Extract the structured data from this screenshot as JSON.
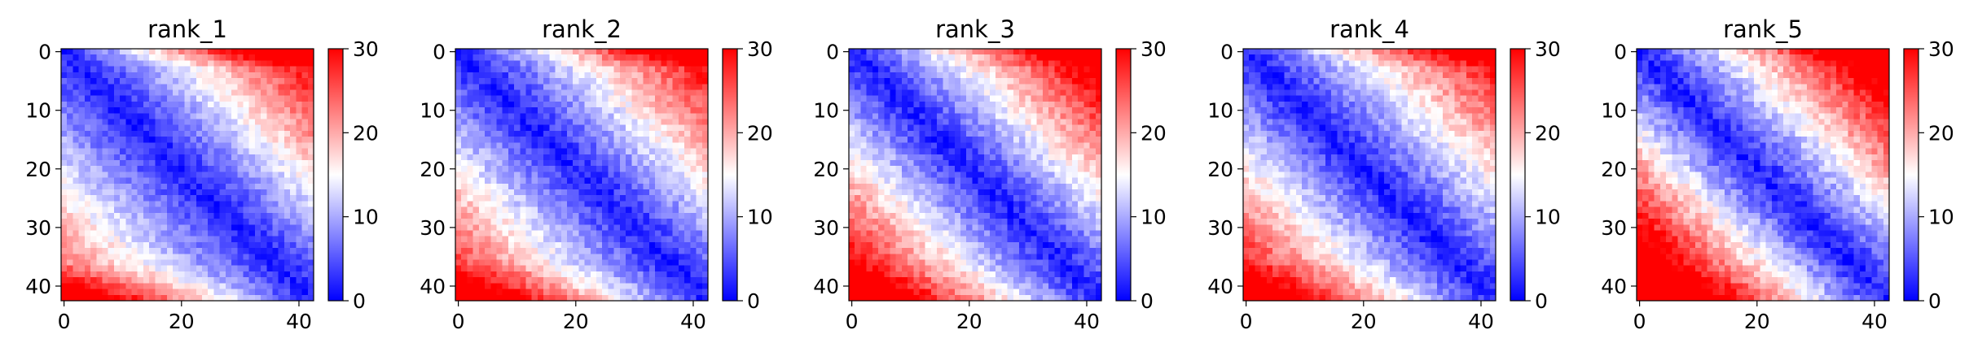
{
  "chart_data": [
    {
      "type": "heatmap",
      "title": "rank_1",
      "size": 43,
      "x_ticks": [
        "0",
        "20",
        "40"
      ],
      "y_ticks": [
        "0",
        "10",
        "20",
        "30",
        "40"
      ],
      "colorbar": {
        "min": 0,
        "max": 30,
        "ticks": [
          "0",
          "10",
          "20",
          "30"
        ],
        "colormap": "bwr"
      },
      "pattern": {
        "base": 1.5,
        "slope": 0.58,
        "bottom_left_boost": 0,
        "top_right_boost": 6,
        "edge_boost": 12,
        "noise": 2.2
      }
    },
    {
      "type": "heatmap",
      "title": "rank_2",
      "size": 43,
      "x_ticks": [
        "0",
        "20",
        "40"
      ],
      "y_ticks": [
        "0",
        "10",
        "20",
        "30",
        "40"
      ],
      "colorbar": {
        "min": 0,
        "max": 30,
        "ticks": [
          "0",
          "10",
          "20",
          "30"
        ],
        "colormap": "bwr"
      },
      "pattern": {
        "base": 1.5,
        "slope": 0.6,
        "bottom_left_boost": 4,
        "top_right_boost": 5,
        "edge_boost": 9,
        "noise": 2.4
      }
    },
    {
      "type": "heatmap",
      "title": "rank_3",
      "size": 43,
      "x_ticks": [
        "0",
        "20",
        "40"
      ],
      "y_ticks": [
        "0",
        "10",
        "20",
        "30",
        "40"
      ],
      "colorbar": {
        "min": 0,
        "max": 30,
        "ticks": [
          "0",
          "10",
          "20",
          "30"
        ],
        "colormap": "bwr"
      },
      "pattern": {
        "base": 1.5,
        "slope": 0.66,
        "bottom_left_boost": 6,
        "top_right_boost": 6,
        "edge_boost": 6,
        "noise": 2.4
      }
    },
    {
      "type": "heatmap",
      "title": "rank_4",
      "size": 43,
      "x_ticks": [
        "0",
        "20",
        "40"
      ],
      "y_ticks": [
        "0",
        "10",
        "20",
        "30",
        "40"
      ],
      "colorbar": {
        "min": 0,
        "max": 30,
        "ticks": [
          "0",
          "10",
          "20",
          "30"
        ],
        "colormap": "bwr"
      },
      "pattern": {
        "base": 1.5,
        "slope": 0.6,
        "bottom_left_boost": 6,
        "top_right_boost": 4,
        "edge_boost": 8,
        "noise": 2.4
      }
    },
    {
      "type": "heatmap",
      "title": "rank_5",
      "size": 43,
      "x_ticks": [
        "0",
        "20",
        "40"
      ],
      "y_ticks": [
        "0",
        "10",
        "20",
        "30",
        "40"
      ],
      "colorbar": {
        "min": 0,
        "max": 30,
        "ticks": [
          "0",
          "10",
          "20",
          "30"
        ],
        "colormap": "bwr"
      },
      "pattern": {
        "base": 1.5,
        "slope": 0.7,
        "bottom_left_boost": 12,
        "top_right_boost": 7,
        "edge_boost": 4,
        "noise": 2.6
      }
    }
  ],
  "colors": {
    "low": "#0000ff",
    "mid": "#ffffff",
    "high": "#ff0000"
  }
}
